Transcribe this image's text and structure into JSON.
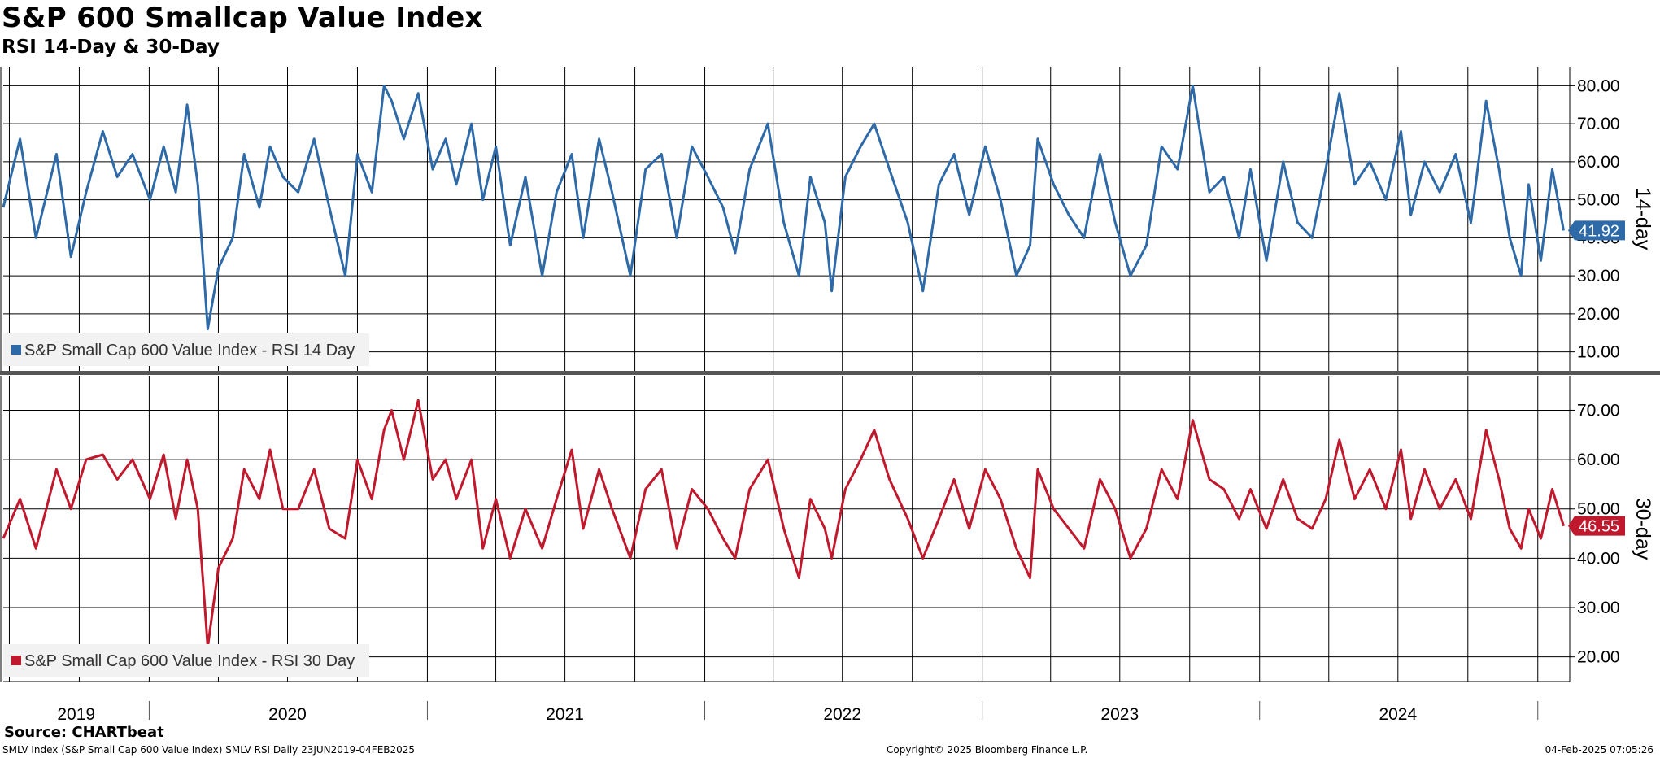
{
  "header": {
    "title": "S&P 600 Smallcap Value Index",
    "subtitle": "RSI 14-Day & 30-Day"
  },
  "footer": {
    "source": "Source: CHARTbeat",
    "left": "SMLV Index (S&P Small Cap 600 Value Index) SMLV RSI  Daily 23JUN2019-04FEB2025",
    "center": "Copyright© 2025 Bloomberg Finance L.P.",
    "right": "04-Feb-2025 07:05:26"
  },
  "colors": {
    "rsi14": "#2e6aa8",
    "rsi30": "#c0182c",
    "grid": "#000000",
    "divider": "#555555"
  },
  "chart_data": [
    {
      "type": "line",
      "series": [
        {
          "name": "S&P Small Cap 600 Value Index - RSI 14 Day",
          "x": [
            "2019-06-23",
            "2019-07-15",
            "2019-08-05",
            "2019-09-01",
            "2019-09-20",
            "2019-10-10",
            "2019-11-01",
            "2019-11-20",
            "2019-12-10",
            "2020-01-02",
            "2020-01-20",
            "2020-02-05",
            "2020-02-20",
            "2020-03-05",
            "2020-03-18",
            "2020-04-01",
            "2020-04-20",
            "2020-05-05",
            "2020-05-25",
            "2020-06-08",
            "2020-06-25",
            "2020-07-15",
            "2020-08-05",
            "2020-08-25",
            "2020-09-15",
            "2020-10-01",
            "2020-10-20",
            "2020-11-05",
            "2020-11-15",
            "2020-12-01",
            "2020-12-20",
            "2021-01-08",
            "2021-01-25",
            "2021-02-08",
            "2021-02-28",
            "2021-03-15",
            "2021-04-01",
            "2021-04-20",
            "2021-05-10",
            "2021-06-01",
            "2021-06-20",
            "2021-07-10",
            "2021-07-25",
            "2021-08-15",
            "2021-09-01",
            "2021-09-25",
            "2021-10-15",
            "2021-11-05",
            "2021-11-25",
            "2021-12-15",
            "2022-01-05",
            "2022-01-25",
            "2022-02-10",
            "2022-03-01",
            "2022-03-25",
            "2022-04-15",
            "2022-05-05",
            "2022-05-20",
            "2022-06-08",
            "2022-06-17",
            "2022-07-05",
            "2022-07-25",
            "2022-08-12",
            "2022-09-01",
            "2022-09-25",
            "2022-10-15",
            "2022-11-05",
            "2022-11-25",
            "2022-12-15",
            "2023-01-05",
            "2023-01-25",
            "2023-02-15",
            "2023-03-05",
            "2023-03-15",
            "2023-04-05",
            "2023-04-25",
            "2023-05-15",
            "2023-06-05",
            "2023-06-25",
            "2023-07-15",
            "2023-08-05",
            "2023-08-25",
            "2023-09-15",
            "2023-10-05",
            "2023-10-27",
            "2023-11-15",
            "2023-12-05",
            "2023-12-20",
            "2024-01-10",
            "2024-02-01",
            "2024-02-20",
            "2024-03-10",
            "2024-03-28",
            "2024-04-15",
            "2024-05-05",
            "2024-05-25",
            "2024-06-15",
            "2024-07-05",
            "2024-07-18",
            "2024-08-05",
            "2024-08-25",
            "2024-09-15",
            "2024-10-05",
            "2024-10-25",
            "2024-11-11",
            "2024-11-25",
            "2024-12-10",
            "2024-12-20",
            "2025-01-05",
            "2025-01-20",
            "2025-02-04"
          ],
          "y": [
            48,
            66,
            40,
            62,
            35,
            52,
            68,
            56,
            62,
            50,
            64,
            52,
            75,
            54,
            16,
            32,
            40,
            62,
            48,
            64,
            56,
            52,
            66,
            48,
            30,
            62,
            52,
            80,
            76,
            66,
            78,
            58,
            66,
            54,
            70,
            50,
            64,
            38,
            56,
            30,
            52,
            62,
            40,
            66,
            52,
            30,
            58,
            62,
            40,
            64,
            56,
            48,
            36,
            58,
            70,
            44,
            30,
            56,
            44,
            26,
            56,
            64,
            70,
            58,
            44,
            26,
            54,
            62,
            46,
            64,
            50,
            30,
            38,
            66,
            54,
            46,
            40,
            62,
            44,
            30,
            38,
            64,
            58,
            80,
            52,
            56,
            40,
            58,
            34,
            60,
            44,
            40,
            58,
            78,
            54,
            60,
            50,
            68,
            46,
            60,
            52,
            62,
            44,
            76,
            58,
            40,
            30,
            54,
            34,
            58,
            41.92
          ]
        }
      ],
      "last_value_label": "41.92",
      "axis_side_label": "14-day",
      "ylim": [
        5,
        85
      ],
      "y_ticks": [
        "80.00",
        "70.00",
        "60.00",
        "50.00",
        "40.00",
        "30.00",
        "20.00",
        "10.00"
      ],
      "legend": "bottom-left",
      "grid": true
    },
    {
      "type": "line",
      "series": [
        {
          "name": "S&P Small Cap 600 Value Index - RSI 30 Day",
          "x": [
            "2019-06-23",
            "2019-07-15",
            "2019-08-05",
            "2019-09-01",
            "2019-09-20",
            "2019-10-10",
            "2019-11-01",
            "2019-11-20",
            "2019-12-10",
            "2020-01-02",
            "2020-01-20",
            "2020-02-05",
            "2020-02-20",
            "2020-03-05",
            "2020-03-18",
            "2020-04-01",
            "2020-04-20",
            "2020-05-05",
            "2020-05-25",
            "2020-06-08",
            "2020-06-25",
            "2020-07-15",
            "2020-08-05",
            "2020-08-25",
            "2020-09-15",
            "2020-10-01",
            "2020-10-20",
            "2020-11-05",
            "2020-11-15",
            "2020-12-01",
            "2020-12-20",
            "2021-01-08",
            "2021-01-25",
            "2021-02-08",
            "2021-02-28",
            "2021-03-15",
            "2021-04-01",
            "2021-04-20",
            "2021-05-10",
            "2021-06-01",
            "2021-06-20",
            "2021-07-10",
            "2021-07-25",
            "2021-08-15",
            "2021-09-01",
            "2021-09-25",
            "2021-10-15",
            "2021-11-05",
            "2021-11-25",
            "2021-12-15",
            "2022-01-05",
            "2022-01-25",
            "2022-02-10",
            "2022-03-01",
            "2022-03-25",
            "2022-04-15",
            "2022-05-05",
            "2022-05-20",
            "2022-06-08",
            "2022-06-17",
            "2022-07-05",
            "2022-07-25",
            "2022-08-12",
            "2022-09-01",
            "2022-09-25",
            "2022-10-15",
            "2022-11-05",
            "2022-11-25",
            "2022-12-15",
            "2023-01-05",
            "2023-01-25",
            "2023-02-15",
            "2023-03-05",
            "2023-03-15",
            "2023-04-05",
            "2023-04-25",
            "2023-05-15",
            "2023-06-05",
            "2023-06-25",
            "2023-07-15",
            "2023-08-05",
            "2023-08-25",
            "2023-09-15",
            "2023-10-05",
            "2023-10-27",
            "2023-11-15",
            "2023-12-05",
            "2023-12-20",
            "2024-01-10",
            "2024-02-01",
            "2024-02-20",
            "2024-03-10",
            "2024-03-28",
            "2024-04-15",
            "2024-05-05",
            "2024-05-25",
            "2024-06-15",
            "2024-07-05",
            "2024-07-18",
            "2024-08-05",
            "2024-08-25",
            "2024-09-15",
            "2024-10-05",
            "2024-10-25",
            "2024-11-11",
            "2024-11-25",
            "2024-12-10",
            "2024-12-20",
            "2025-01-05",
            "2025-01-20",
            "2025-02-04"
          ],
          "y": [
            44,
            52,
            42,
            58,
            50,
            60,
            61,
            56,
            60,
            52,
            61,
            48,
            60,
            50,
            22,
            38,
            44,
            58,
            52,
            62,
            50,
            50,
            58,
            46,
            44,
            60,
            52,
            66,
            70,
            60,
            72,
            56,
            60,
            52,
            60,
            42,
            52,
            40,
            50,
            42,
            52,
            62,
            46,
            58,
            50,
            40,
            54,
            58,
            42,
            54,
            50,
            44,
            40,
            54,
            60,
            46,
            36,
            52,
            46,
            40,
            54,
            60,
            66,
            56,
            48,
            40,
            48,
            56,
            46,
            58,
            52,
            42,
            36,
            58,
            50,
            46,
            42,
            56,
            50,
            40,
            46,
            58,
            52,
            68,
            56,
            54,
            48,
            54,
            46,
            56,
            48,
            46,
            52,
            64,
            52,
            58,
            50,
            62,
            48,
            58,
            50,
            56,
            48,
            66,
            56,
            46,
            42,
            50,
            44,
            54,
            46.55
          ]
        }
      ],
      "last_value_label": "46.55",
      "axis_side_label": "30-day",
      "ylim": [
        15,
        77
      ],
      "y_ticks": [
        "70.00",
        "60.00",
        "50.00",
        "40.00",
        "30.00",
        "20.00"
      ],
      "legend": "bottom-left",
      "grid": true
    }
  ],
  "x_axis": {
    "years": [
      "2019",
      "2020",
      "2021",
      "2022",
      "2023",
      "2024"
    ],
    "range": [
      "2019-06-23",
      "2025-02-12"
    ]
  }
}
